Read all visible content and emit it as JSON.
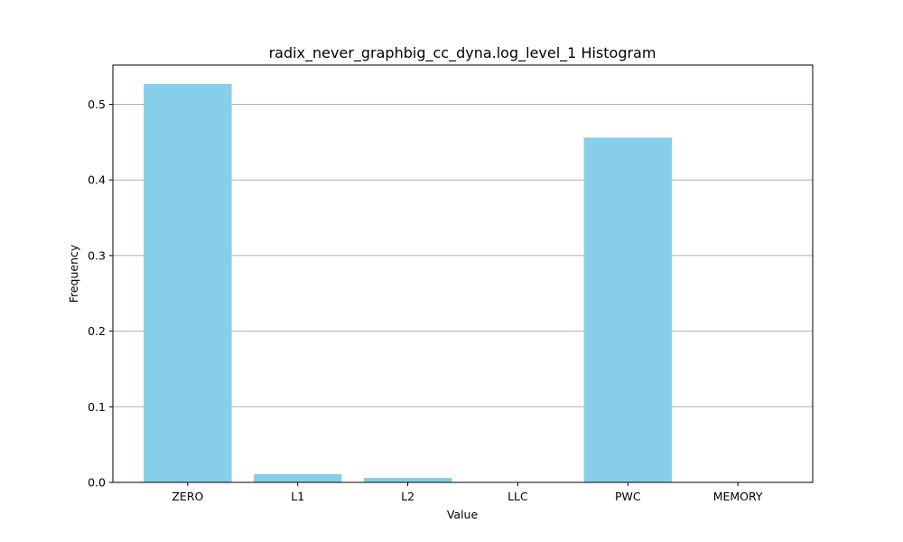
{
  "chart_data": {
    "type": "bar",
    "title": "radix_never_graphbig_cc_dyna.log_level_1 Histogram",
    "xlabel": "Value",
    "ylabel": "Frequency",
    "categories": [
      "ZERO",
      "L1",
      "L2",
      "LLC",
      "PWC",
      "MEMORY"
    ],
    "values": [
      0.527,
      0.011,
      0.006,
      0.0,
      0.456,
      0.0
    ],
    "ylim": [
      0,
      0.552
    ],
    "yticks": [
      0.0,
      0.1,
      0.2,
      0.3,
      0.4,
      0.5
    ],
    "ytick_labels": [
      "0.0",
      "0.1",
      "0.2",
      "0.3",
      "0.4",
      "0.5"
    ],
    "grid": "y",
    "bar_color": "#87ceeb"
  }
}
